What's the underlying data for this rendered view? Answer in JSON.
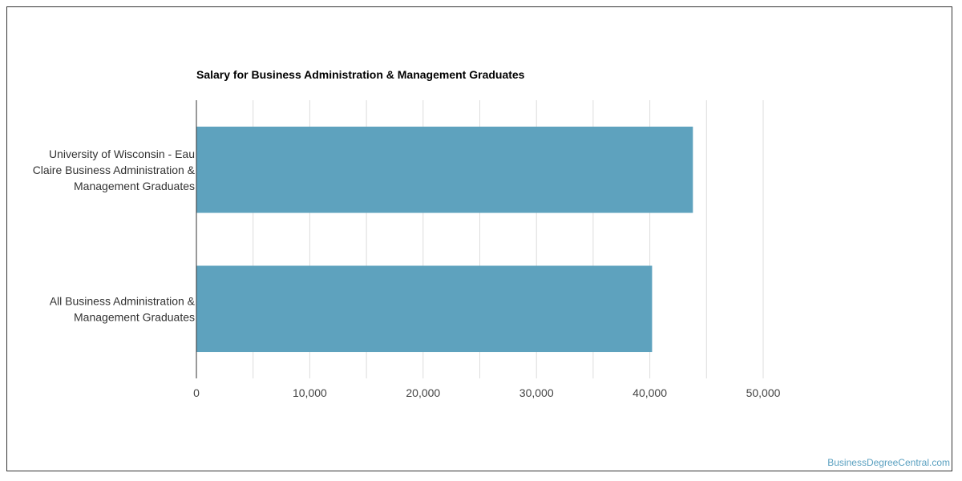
{
  "chart_data": {
    "type": "bar",
    "orientation": "horizontal",
    "title": "Salary for Business Administration & Management Graduates",
    "categories": [
      [
        "University of Wisconsin - Eau",
        "Claire Business Administration &",
        "Management Graduates"
      ],
      [
        "All Business Administration &",
        "Management Graduates"
      ]
    ],
    "values": [
      43800,
      40200
    ],
    "xlim": [
      0,
      50000
    ],
    "xticks": [
      0,
      10000,
      20000,
      30000,
      40000,
      50000
    ],
    "xtick_labels": [
      "0",
      "10,000",
      "20,000",
      "30,000",
      "40,000",
      "50,000"
    ],
    "grid": true,
    "bar_color": "#5ea2be"
  },
  "watermark": "BusinessDegreeCentral.com"
}
